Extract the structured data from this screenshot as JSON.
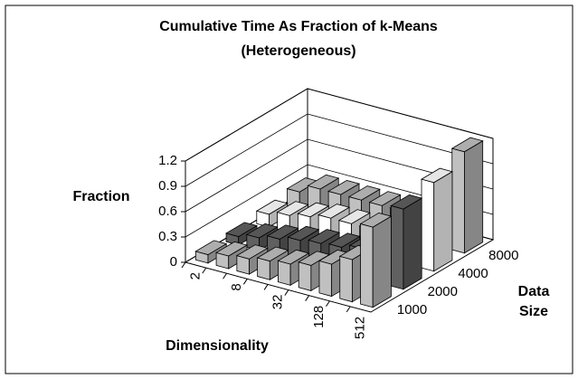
{
  "chart_data": {
    "type": "bar3d",
    "title": "Cumulative Time As Fraction of k-Means",
    "subtitle": "(Heterogeneous)",
    "y_label": "Fraction",
    "x_label": "Dimensionality",
    "z_label": "Data Size",
    "categories": [
      "2",
      null,
      "8",
      null,
      "32",
      null,
      "128",
      null,
      "512"
    ],
    "series": [
      {
        "name": "1000",
        "color": "#c0c0c0",
        "values": [
          0.1,
          0.15,
          0.18,
          0.22,
          0.25,
          0.3,
          0.38,
          0.5,
          0.95
        ]
      },
      {
        "name": "2000",
        "color": "#606060",
        "values": [
          0.1,
          0.15,
          0.2,
          0.25,
          0.28,
          0.3,
          0.35,
          0.5,
          0.95
        ]
      },
      {
        "name": "4000",
        "color": "#ffffff",
        "values": [
          0.15,
          0.2,
          0.25,
          0.3,
          0.3,
          0.3,
          0.35,
          0.5,
          1.05
        ]
      },
      {
        "name": "8000",
        "color": "#c0c0c0",
        "values": [
          0.2,
          0.3,
          0.3,
          0.3,
          0.3,
          0.3,
          0.3,
          0.4,
          1.2
        ]
      }
    ],
    "ylim": [
      0,
      1.2
    ],
    "yticks": [
      0,
      0.3,
      0.6,
      0.9,
      1.2
    ],
    "grid": true
  }
}
